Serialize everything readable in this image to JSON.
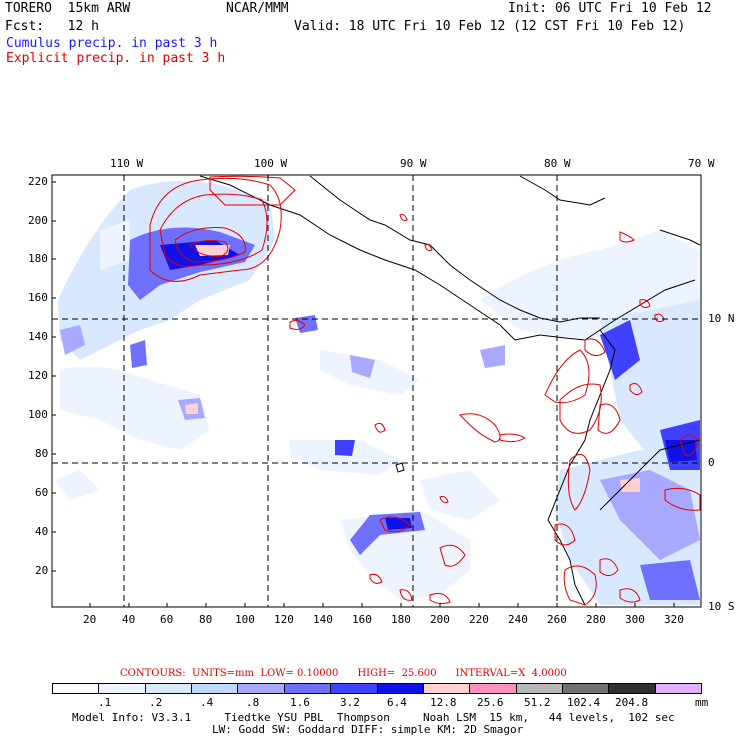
{
  "header": {
    "model_name": "TORERO  15km ARW",
    "org": "NCAR/MMM",
    "init": "Init: 06 UTC Fri 10 Feb 12",
    "fcst": "Fcst:   12 h",
    "valid": "Valid: 18 UTC Fri 10 Feb 12 (12 CST Fri 10 Feb 12)",
    "field1": "Cumulus precip. in past 3 h",
    "field2": "Explicit precip. in past 3 h",
    "field1_color": "#1a1aff",
    "field2_color": "#e00000"
  },
  "map": {
    "top_lon_labels": [
      "110 W",
      "100 W",
      "90 W",
      "80 W",
      "70 W"
    ],
    "right_lat_labels": [
      "10 N",
      "0",
      "10 S"
    ],
    "y_ticks": [
      "220",
      "200",
      "180",
      "160",
      "140",
      "120",
      "100",
      "80",
      "60",
      "40",
      "20"
    ],
    "x_ticks": [
      "20",
      "40",
      "60",
      "80",
      "100",
      "120",
      "140",
      "160",
      "180",
      "200",
      "220",
      "240",
      "260",
      "280",
      "300",
      "320"
    ]
  },
  "contours_info": {
    "label": "CONTOURS:  UNITS=mm  LOW= 0.10000      HIGH=  25.600      INTERVAL=X  4.0000"
  },
  "legend": {
    "colors": [
      "#ffffff",
      "#eef4ff",
      "#d8e8ff",
      "#c0d8ff",
      "#a8a8ff",
      "#7070ff",
      "#4040ff",
      "#1010e8",
      "#ffd0d0",
      "#ff90c0",
      "#b8b8b8",
      "#707070",
      "#303030",
      "#e0b0ff"
    ],
    "values": [
      ".1",
      ".2",
      ".4",
      ".8",
      "1.6",
      "3.2",
      "6.4",
      "12.8",
      "25.6",
      "51.2",
      "102.4",
      "204.8"
    ],
    "unit": "mm"
  },
  "footer": {
    "line1": "Model Info: V3.3.1     Tiedtke YSU PBL  Thompson     Noah LSM  15 km,   44 levels,  102 sec",
    "line2": "LW: Godd SW: Goddard DIFF: simple KM: 2D Smagor"
  }
}
